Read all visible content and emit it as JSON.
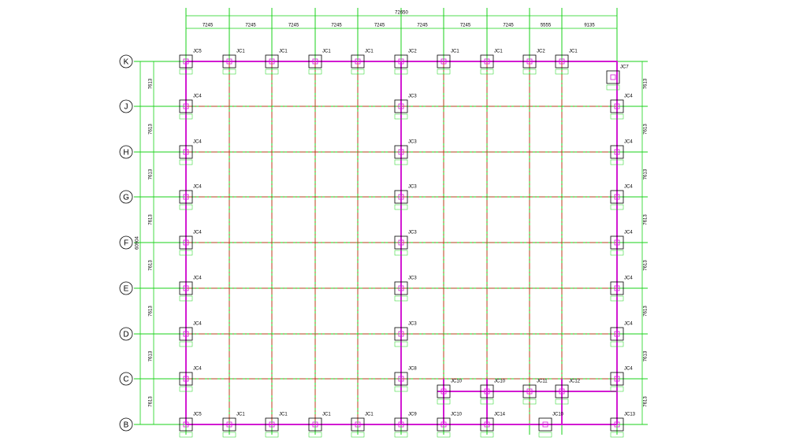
{
  "dimensions_top": {
    "total": "72650",
    "spans": [
      "7245",
      "7245",
      "7245",
      "7245",
      "7245",
      "7245",
      "7245",
      "7245",
      "5555",
      "9135"
    ]
  },
  "dimensions_left": {
    "total": "60904",
    "spans": [
      "7613",
      "7613",
      "7613",
      "7613",
      "7613",
      "7613",
      "7613",
      "7613"
    ]
  },
  "dimensions_right": {
    "spans": [
      "7613",
      "7613",
      "7613",
      "7613",
      "7613",
      "7613",
      "7613",
      "7613"
    ]
  },
  "axes": [
    "K",
    "J",
    "H",
    "G",
    "F",
    "E",
    "D",
    "C",
    "B"
  ],
  "footings": {
    "top_row": [
      "JC5",
      "JC1",
      "JC1",
      "JC1",
      "JC1",
      "JC2",
      "JC1",
      "JC1",
      "JC2",
      "JC1",
      "JC7"
    ],
    "left_column": [
      "JC4",
      "JC4",
      "JC4",
      "JC4",
      "JC4",
      "JC4",
      "JC4"
    ],
    "middle_column": [
      "JC3",
      "JC3",
      "JC3",
      "JC3",
      "JC3",
      "JC3",
      "JC8"
    ],
    "right_column": [
      "JC4",
      "JC4",
      "JC4",
      "JC4",
      "JC4",
      "JC4",
      "JC4"
    ],
    "row_c": [
      "JC10",
      "JC10",
      "JC11",
      "JC12"
    ],
    "bottom_row": [
      "JC5",
      "JC1",
      "JC1",
      "JC1",
      "JC1",
      "JC9",
      "JC10",
      "JC14",
      "JC10",
      "JC13"
    ]
  }
}
